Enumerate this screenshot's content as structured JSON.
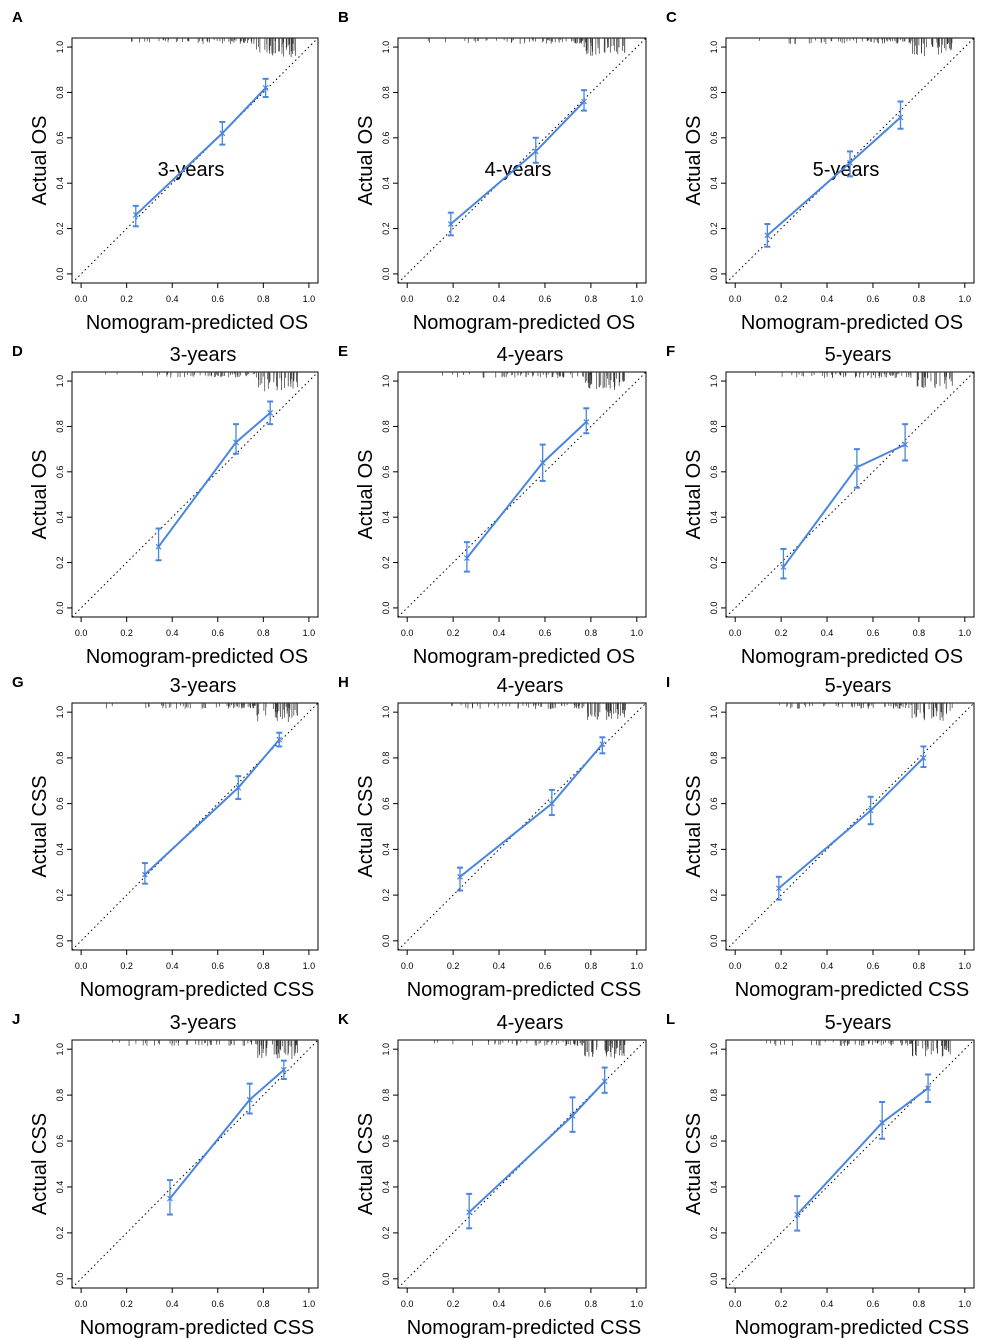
{
  "figure": {
    "blue": "#4a86e0"
  },
  "chart_data": [
    {
      "type": "line",
      "panel": "A",
      "title": "3-years",
      "title_placement": "inside",
      "xlabel": "Nomogram-predicted OS",
      "ylabel": "Actual OS",
      "xlim": [
        0,
        1
      ],
      "ylim": [
        0,
        1
      ],
      "ticks": [
        "0.0",
        "0.2",
        "0.4",
        "0.6",
        "0.8",
        "1.0"
      ],
      "series": [
        {
          "name": "calibration",
          "x": [
            0.24,
            0.62,
            0.81
          ],
          "y": [
            0.26,
            0.62,
            0.82
          ],
          "err_low": [
            0.21,
            0.57,
            0.78
          ],
          "err_high": [
            0.3,
            0.67,
            0.86
          ]
        }
      ]
    },
    {
      "type": "line",
      "panel": "B",
      "title": "4-years",
      "title_placement": "inside",
      "xlabel": "Nomogram-predicted OS",
      "ylabel": "Actual OS",
      "xlim": [
        0,
        1
      ],
      "ylim": [
        0,
        1
      ],
      "ticks": [
        "0.0",
        "0.2",
        "0.4",
        "0.6",
        "0.8",
        "1.0"
      ],
      "series": [
        {
          "name": "calibration",
          "x": [
            0.19,
            0.56,
            0.77
          ],
          "y": [
            0.22,
            0.54,
            0.76
          ],
          "err_low": [
            0.17,
            0.49,
            0.72
          ],
          "err_high": [
            0.27,
            0.6,
            0.81
          ]
        }
      ]
    },
    {
      "type": "line",
      "panel": "C",
      "title": "5-years",
      "title_placement": "inside",
      "xlabel": "Nomogram-predicted OS",
      "ylabel": "Actual OS",
      "xlim": [
        0,
        1
      ],
      "ylim": [
        0,
        1
      ],
      "ticks": [
        "0.0",
        "0.2",
        "0.4",
        "0.6",
        "0.8",
        "1.0"
      ],
      "series": [
        {
          "name": "calibration",
          "x": [
            0.14,
            0.5,
            0.72
          ],
          "y": [
            0.17,
            0.49,
            0.69
          ],
          "err_low": [
            0.12,
            0.43,
            0.64
          ],
          "err_high": [
            0.22,
            0.54,
            0.76
          ]
        }
      ]
    },
    {
      "type": "line",
      "panel": "D",
      "title": "3-years",
      "title_placement": "above",
      "xlabel": "Nomogram-predicted OS",
      "ylabel": "Actual OS",
      "xlim": [
        0,
        1
      ],
      "ylim": [
        0,
        1
      ],
      "ticks": [
        "0.0",
        "0.2",
        "0.4",
        "0.6",
        "0.8",
        "1.0"
      ],
      "series": [
        {
          "name": "calibration",
          "x": [
            0.34,
            0.68,
            0.83
          ],
          "y": [
            0.27,
            0.73,
            0.86
          ],
          "err_low": [
            0.21,
            0.68,
            0.81
          ],
          "err_high": [
            0.35,
            0.81,
            0.91
          ]
        }
      ]
    },
    {
      "type": "line",
      "panel": "E",
      "title": "4-years",
      "title_placement": "above",
      "xlabel": "Nomogram-predicted OS",
      "ylabel": "Actual OS",
      "xlim": [
        0,
        1
      ],
      "ylim": [
        0,
        1
      ],
      "ticks": [
        "0.0",
        "0.2",
        "0.4",
        "0.6",
        "0.8",
        "1.0"
      ],
      "series": [
        {
          "name": "calibration",
          "x": [
            0.26,
            0.59,
            0.78
          ],
          "y": [
            0.22,
            0.64,
            0.82
          ],
          "err_low": [
            0.16,
            0.56,
            0.77
          ],
          "err_high": [
            0.29,
            0.72,
            0.88
          ]
        }
      ]
    },
    {
      "type": "line",
      "panel": "F",
      "title": "5-years",
      "title_placement": "above",
      "xlabel": "Nomogram-predicted OS",
      "ylabel": "Actual OS",
      "xlim": [
        0,
        1
      ],
      "ylim": [
        0,
        1
      ],
      "ticks": [
        "0.0",
        "0.2",
        "0.4",
        "0.6",
        "0.8",
        "1.0"
      ],
      "series": [
        {
          "name": "calibration",
          "x": [
            0.21,
            0.53,
            0.74
          ],
          "y": [
            0.18,
            0.62,
            0.72
          ],
          "err_low": [
            0.13,
            0.53,
            0.65
          ],
          "err_high": [
            0.26,
            0.7,
            0.81
          ]
        }
      ]
    },
    {
      "type": "line",
      "panel": "G",
      "title": "3-years",
      "title_placement": "above",
      "xlabel": "Nomogram-predicted CSS",
      "ylabel": "Actual CSS",
      "xlim": [
        0,
        1
      ],
      "ylim": [
        0,
        1
      ],
      "ticks": [
        "0.0",
        "0.2",
        "0.4",
        "0.6",
        "0.8",
        "1.0"
      ],
      "series": [
        {
          "name": "calibration",
          "x": [
            0.28,
            0.69,
            0.87
          ],
          "y": [
            0.29,
            0.67,
            0.88
          ],
          "err_low": [
            0.25,
            0.62,
            0.85
          ],
          "err_high": [
            0.34,
            0.72,
            0.91
          ]
        }
      ]
    },
    {
      "type": "line",
      "panel": "H",
      "title": "4-years",
      "title_placement": "above",
      "xlabel": "Nomogram-predicted CSS",
      "ylabel": "Actual CSS",
      "xlim": [
        0,
        1
      ],
      "ylim": [
        0,
        1
      ],
      "ticks": [
        "0.0",
        "0.2",
        "0.4",
        "0.6",
        "0.8",
        "1.0"
      ],
      "series": [
        {
          "name": "calibration",
          "x": [
            0.23,
            0.63,
            0.85
          ],
          "y": [
            0.28,
            0.6,
            0.86
          ],
          "err_low": [
            0.22,
            0.55,
            0.82
          ],
          "err_high": [
            0.32,
            0.66,
            0.89
          ]
        }
      ]
    },
    {
      "type": "line",
      "panel": "I",
      "title": "5-years",
      "title_placement": "above",
      "xlabel": "Nomogram-predicted CSS",
      "ylabel": "Actual CSS",
      "xlim": [
        0,
        1
      ],
      "ylim": [
        0,
        1
      ],
      "ticks": [
        "0.0",
        "0.2",
        "0.4",
        "0.6",
        "0.8",
        "1.0"
      ],
      "series": [
        {
          "name": "calibration",
          "x": [
            0.19,
            0.59,
            0.82
          ],
          "y": [
            0.23,
            0.57,
            0.8
          ],
          "err_low": [
            0.18,
            0.51,
            0.76
          ],
          "err_high": [
            0.28,
            0.63,
            0.85
          ]
        }
      ]
    },
    {
      "type": "line",
      "panel": "J",
      "title": "3-years",
      "title_placement": "above",
      "xlabel": "Nomogram-predicted CSS",
      "ylabel": "Actual CSS",
      "xlim": [
        0,
        1
      ],
      "ylim": [
        0,
        1
      ],
      "ticks": [
        "0.0",
        "0.2",
        "0.4",
        "0.6",
        "0.8",
        "1.0"
      ],
      "series": [
        {
          "name": "calibration",
          "x": [
            0.39,
            0.74,
            0.89
          ],
          "y": [
            0.35,
            0.78,
            0.91
          ],
          "err_low": [
            0.28,
            0.72,
            0.87
          ],
          "err_high": [
            0.43,
            0.85,
            0.95
          ]
        }
      ]
    },
    {
      "type": "line",
      "panel": "K",
      "title": "4-years",
      "title_placement": "above",
      "xlabel": "Nomogram-predicted CSS",
      "ylabel": "Actual CSS",
      "xlim": [
        0,
        1
      ],
      "ylim": [
        0,
        1
      ],
      "ticks": [
        "0.0",
        "0.2",
        "0.4",
        "0.6",
        "0.8",
        "1.0"
      ],
      "series": [
        {
          "name": "calibration",
          "x": [
            0.27,
            0.72,
            0.86
          ],
          "y": [
            0.29,
            0.71,
            0.86
          ],
          "err_low": [
            0.22,
            0.64,
            0.81
          ],
          "err_high": [
            0.37,
            0.79,
            0.92
          ]
        }
      ]
    },
    {
      "type": "line",
      "panel": "L",
      "title": "5-years",
      "title_placement": "above",
      "xlabel": "Nomogram-predicted CSS",
      "ylabel": "Actual CSS",
      "xlim": [
        0,
        1
      ],
      "ylim": [
        0,
        1
      ],
      "ticks": [
        "0.0",
        "0.2",
        "0.4",
        "0.6",
        "0.8",
        "1.0"
      ],
      "series": [
        {
          "name": "calibration",
          "x": [
            0.27,
            0.64,
            0.84
          ],
          "y": [
            0.28,
            0.68,
            0.83
          ],
          "err_low": [
            0.21,
            0.61,
            0.77
          ],
          "err_high": [
            0.36,
            0.77,
            0.89
          ]
        }
      ]
    }
  ]
}
